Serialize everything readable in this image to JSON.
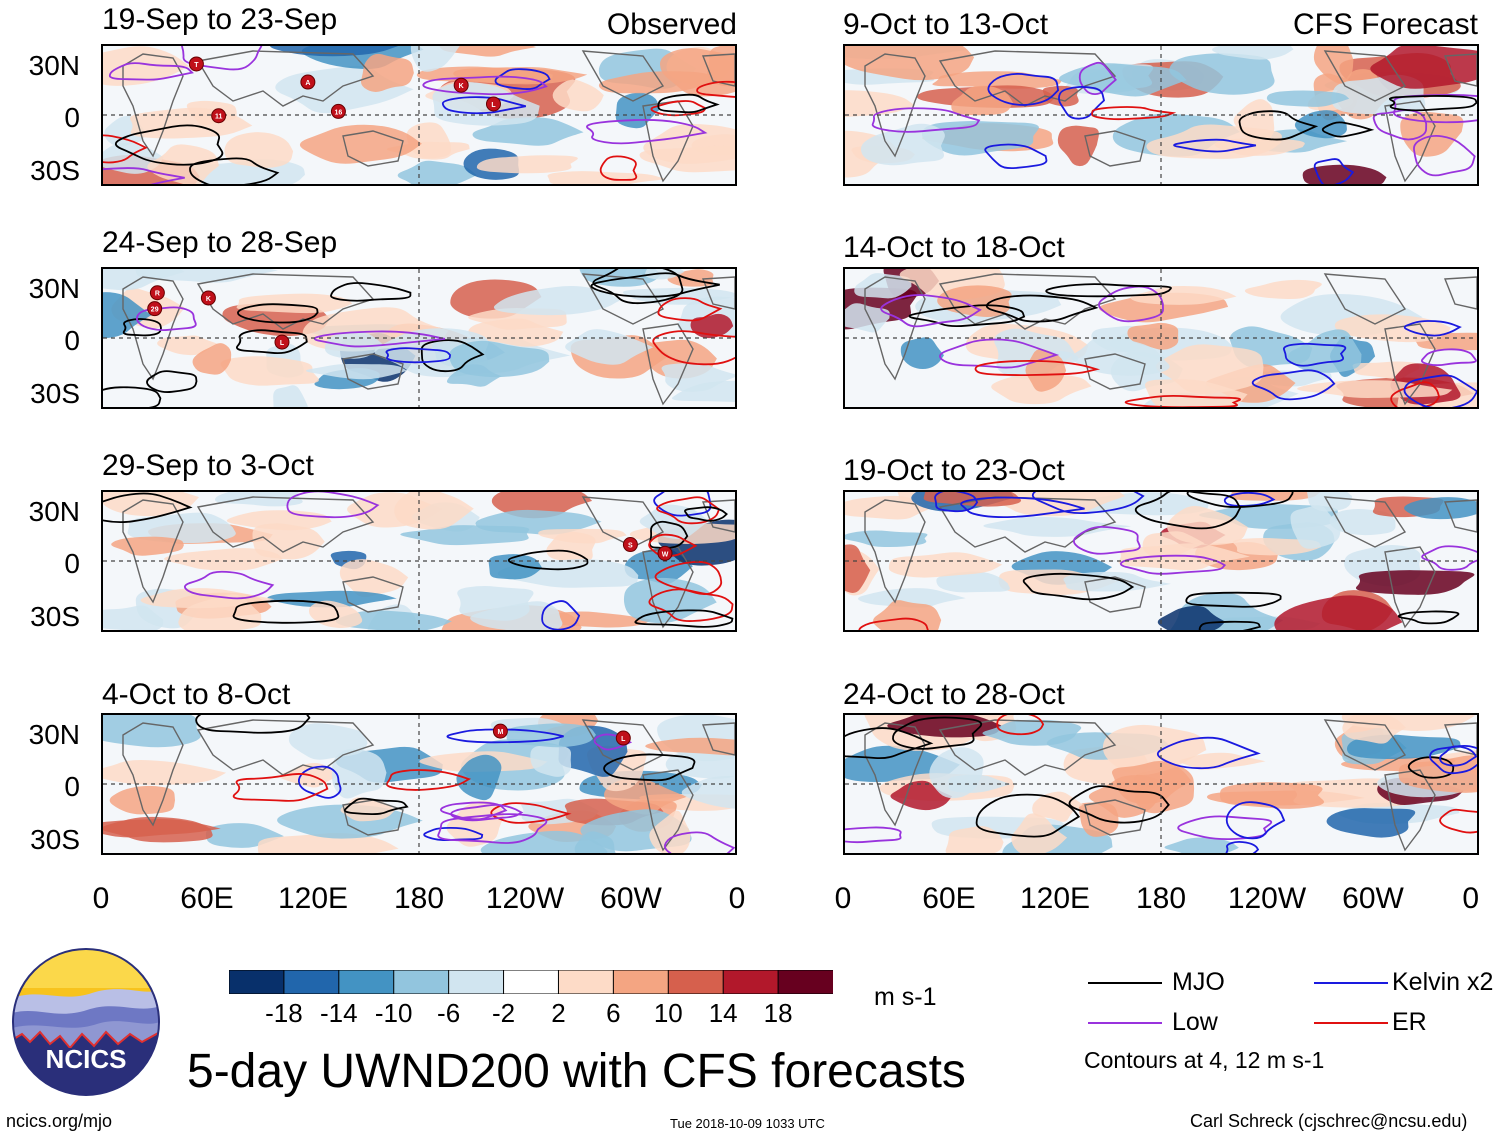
{
  "title": "5-day UWND200 with CFS forecasts",
  "panels": [
    {
      "title": "19-Sep to 23-Sep",
      "tag": "Observed",
      "storms": [
        "T",
        "16",
        "L",
        "11",
        "K",
        "A"
      ]
    },
    {
      "title": "24-Sep to 28-Sep",
      "tag": "",
      "storms": [
        "29",
        "K",
        "L",
        "R"
      ]
    },
    {
      "title": "29-Sep to 3-Oct",
      "tag": "",
      "storms": [
        "W",
        "S"
      ]
    },
    {
      "title": "4-Oct to 8-Oct",
      "tag": "",
      "storms": [
        "L",
        "M"
      ]
    },
    {
      "title": "9-Oct to 13-Oct",
      "tag": "CFS Forecast",
      "storms": []
    },
    {
      "title": "14-Oct to 18-Oct",
      "tag": "",
      "storms": []
    },
    {
      "title": "19-Oct to 23-Oct",
      "tag": "",
      "storms": []
    },
    {
      "title": "24-Oct to 28-Oct",
      "tag": "",
      "storms": []
    }
  ],
  "lat_labels": [
    "30N",
    "0",
    "30S"
  ],
  "lon_labels": [
    "0",
    "60E",
    "120E",
    "180",
    "120W",
    "60W",
    "0"
  ],
  "colorbar": {
    "labels": [
      "-18",
      "-14",
      "-10",
      "-6",
      "-2",
      "2",
      "6",
      "10",
      "14",
      "18"
    ],
    "colors": [
      "#08306b",
      "#2166ac",
      "#4393c3",
      "#92c5de",
      "#d1e5f0",
      "#ffffff",
      "#fddbc7",
      "#f4a582",
      "#d6604d",
      "#b2182b",
      "#67001f"
    ],
    "units": "m s-1"
  },
  "legend": {
    "items": [
      {
        "label": "MJO",
        "color": "#000000"
      },
      {
        "label": "Kelvin x2",
        "color": "#1a1adf"
      },
      {
        "label": "Low",
        "color": "#9933dd"
      },
      {
        "label": "ER",
        "color": "#e01010"
      }
    ],
    "note": "Contours at 4, 12 m s-1"
  },
  "logo": {
    "text": "NCICS"
  },
  "footer": {
    "url": "ncics.org/mjo",
    "timestamp": "Tue 2018-10-09 1033 UTC",
    "author": "Carl Schreck (cjschrec@ncsu.edu)"
  }
}
